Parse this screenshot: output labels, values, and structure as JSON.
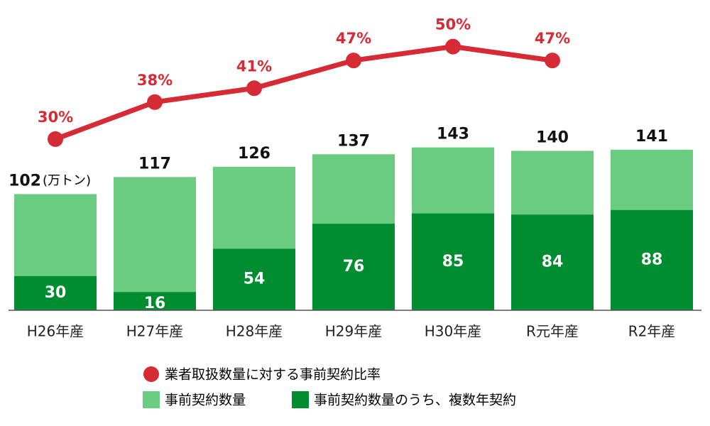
{
  "chart_data": {
    "type": "bar",
    "categories": [
      "H26年産",
      "H27年産",
      "H28年産",
      "H29年産",
      "H30年産",
      "R元年産",
      "R2年産"
    ],
    "unit_label": "(万トン)",
    "series": [
      {
        "name": "事前契約数量",
        "color": "#6bcb80",
        "values": [
          102,
          117,
          126,
          137,
          143,
          140,
          141
        ]
      },
      {
        "name": "事前契約数量のうち、複数年契約",
        "color": "#008c30",
        "values": [
          30,
          16,
          54,
          76,
          85,
          84,
          88
        ]
      },
      {
        "name": "業者取扱数量に対する事前契約比率",
        "color": "#d62a35",
        "type": "line",
        "axis": "y2",
        "values": [
          30,
          38,
          41,
          47,
          50,
          47,
          null
        ],
        "value_labels": [
          "30%",
          "38%",
          "41%",
          "47%",
          "50%",
          "47%",
          null
        ]
      }
    ],
    "ylim": [
      0,
      260
    ],
    "y2lim": [
      -7,
      57
    ],
    "grid": false
  }
}
